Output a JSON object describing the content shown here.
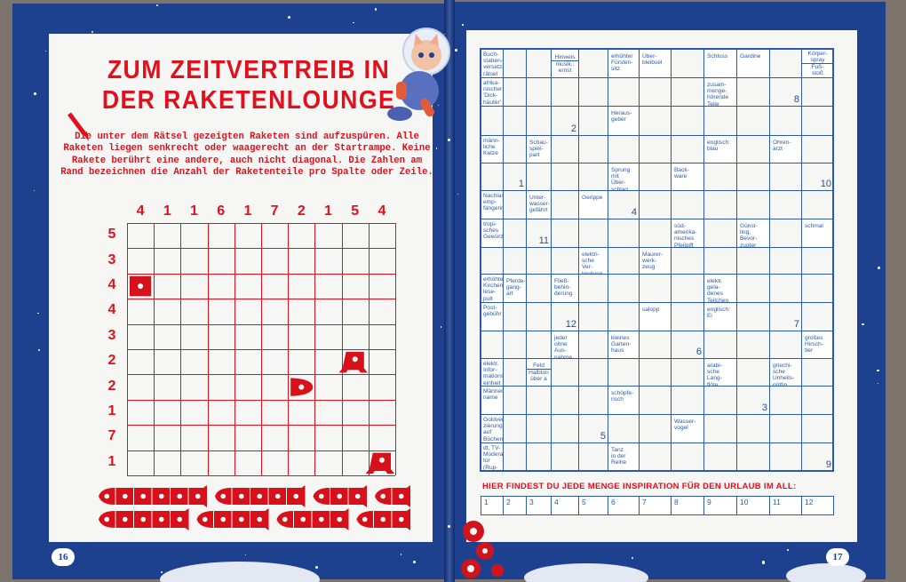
{
  "left_page": {
    "title_line1": "ZUM ZEITVERTREIB IN",
    "title_line2": "DER RAKETENLOUNGE",
    "instructions": "Die unter dem Rätsel gezeigten Raketen sind aufzuspüren. Alle Raketen liegen senkrecht oder waagerecht an der Startrampe. Keine Rakete berührt eine andere, auch nicht diagonal. Die Zahlen am Rand bezeichnen die Anzahl der Raketenteile pro Spalte oder Zeile.",
    "page_number": "16",
    "puzzle": {
      "column_counts": [
        "4",
        "1",
        "1",
        "6",
        "1",
        "7",
        "2",
        "1",
        "5",
        "4"
      ],
      "row_counts": [
        "5",
        "3",
        "4",
        "4",
        "3",
        "2",
        "2",
        "1",
        "7",
        "1"
      ],
      "given_parts": [
        {
          "row": 3,
          "col": 1,
          "part": "middle"
        },
        {
          "row": 6,
          "col": 9,
          "part": "tail-up"
        },
        {
          "row": 7,
          "col": 7,
          "part": "nose-right"
        },
        {
          "row": 10,
          "col": 10,
          "part": "tail-up"
        }
      ],
      "fleet": [
        [
          6,
          5,
          3,
          2
        ],
        [
          5,
          4,
          4,
          3
        ]
      ]
    },
    "accent_color": "#e0101c"
  },
  "right_page": {
    "page_number": "17",
    "crossword": {
      "rows": [
        [
          "Buch-\nstaben-\nversetz-\nrätsel",
          null,
          null,
          [
            "Hinweis",
            "musik.:\nernst"
          ],
          null,
          "erhöhter\nFürsten-\nsitz",
          "Über-\nbleibsel",
          null,
          "Schluss",
          "Gardine",
          null,
          [
            "Körper-\nspray",
            "Fuß-\nstoß"
          ]
        ],
        [
          "afrika-\nnischer\n'Dick-\nhäuter'",
          null,
          null,
          null,
          null,
          null,
          null,
          null,
          "zusam-\nmenge-\nhörende\nTeile",
          null,
          8,
          null
        ],
        [
          null,
          null,
          null,
          2,
          null,
          "Heraus-\ngeber",
          null,
          null,
          null,
          null,
          null,
          null
        ],
        [
          "männ-\nliche\nKatze",
          null,
          "Schau-\nspiel-\npart",
          null,
          null,
          null,
          null,
          null,
          "englisch:\nblau",
          null,
          "Ohren-\narzt",
          null
        ],
        [
          null,
          1,
          null,
          null,
          null,
          "Sprung\nmit\nÜber-\nschlag",
          null,
          "Back-\nware",
          null,
          null,
          null,
          10
        ],
        [
          "Nachlass-\nemp-\nfängerin",
          null,
          "Unter-\nwasser-\ngefährt",
          null,
          "Gerippe",
          4,
          null,
          null,
          null,
          null,
          null,
          null
        ],
        [
          "tropi-\nsches\nGewürz",
          null,
          11,
          null,
          null,
          null,
          null,
          "süd-\namerika-\nnisches\nPfeilgift",
          null,
          "Günst-\nling,\nBevor-\nzugter",
          null,
          "schmal"
        ],
        [
          null,
          null,
          null,
          null,
          "elektri-\nsche Ver-\nbindung",
          null,
          "Maurer-\nwerk-\nzeug",
          null,
          null,
          null,
          null,
          null
        ],
        [
          "erhöhtes\nKirchen-\nlese-\npult",
          "Pferde-\ngang-\nart",
          null,
          "Fließ-\nbehin-\nderung",
          null,
          null,
          null,
          null,
          "elektr.\ngela-\ndenes\nTeilchen",
          null,
          null,
          null
        ],
        [
          "Post-\ngebühr",
          null,
          null,
          12,
          null,
          null,
          "salopp",
          null,
          "englisch:\nEi",
          null,
          7,
          null
        ],
        [
          null,
          null,
          null,
          "jeder\nohne\nAus-\nnahme",
          null,
          "kleines\nGarten-\nhaus",
          null,
          6,
          null,
          null,
          null,
          "großes\nHirsch-\ntier"
        ],
        [
          "elektr.\nInfor-\nmations-\neinheit",
          null,
          [
            "Feld",
            "Halbton\nüber a"
          ],
          null,
          null,
          null,
          null,
          null,
          "arabi-\nsche\nLang-\nflöte",
          null,
          "griechi-\nsche\nUnheils-\ngöttin",
          null
        ],
        [
          "Männer-\nname",
          null,
          null,
          null,
          null,
          "schöpfe-\nrisch",
          null,
          null,
          null,
          3,
          null,
          null
        ],
        [
          "Goldver-\nzierung\nauf\nBüchern",
          null,
          null,
          null,
          5,
          null,
          null,
          "Wasser-\nvogel",
          null,
          null,
          null,
          null
        ],
        [
          "dt. TV-\nModera-\ntor (Rup-\nrecht)",
          null,
          null,
          null,
          null,
          "Tanz\nin der\nReihe",
          null,
          null,
          null,
          null,
          null,
          9
        ]
      ]
    },
    "solution_prompt": "HIER FINDEST DU JEDE MENGE INSPIRATION FÜR DEN URLAUB IM ALL:",
    "solution_boxes": [
      "1",
      "2",
      "3",
      "4",
      "5",
      "6",
      "7",
      "8",
      "9",
      "10",
      "11",
      "12"
    ],
    "grid_color": "#2b5aa8"
  },
  "cover_color": "#1d418f"
}
